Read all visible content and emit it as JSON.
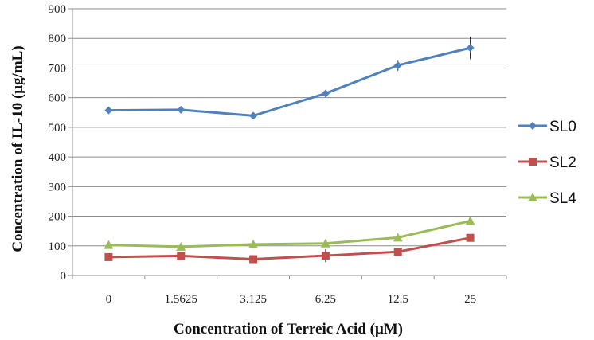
{
  "chart_data": {
    "type": "line",
    "title": "",
    "xlabel": "Concentration of Terreic Acid (μM)",
    "ylabel": "Concentration of IL-10 (μg/mL)",
    "categories": [
      "0",
      "1.5625",
      "3.125",
      "6.25",
      "12.5",
      "25"
    ],
    "ylim": [
      0,
      900
    ],
    "yticks": [
      0,
      100,
      200,
      300,
      400,
      500,
      600,
      700,
      800,
      900
    ],
    "grid": true,
    "legend_position": "right",
    "series": [
      {
        "name": "SL0",
        "values": [
          557,
          559,
          539,
          614,
          709,
          768
        ],
        "errors": [
          4,
          4,
          4,
          8,
          18,
          38
        ],
        "color": "#4f81bd",
        "marker": "diamond"
      },
      {
        "name": "SL2",
        "values": [
          62,
          66,
          55,
          67,
          80,
          127
        ],
        "errors": [
          6,
          6,
          6,
          22,
          6,
          6
        ],
        "color": "#c0504d",
        "marker": "square"
      },
      {
        "name": "SL4",
        "values": [
          103,
          97,
          105,
          108,
          128,
          184
        ],
        "errors": [
          6,
          6,
          14,
          8,
          6,
          6
        ],
        "color": "#9bbb59",
        "marker": "triangle"
      }
    ]
  }
}
